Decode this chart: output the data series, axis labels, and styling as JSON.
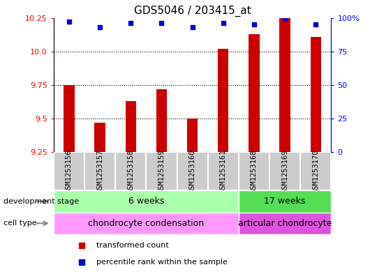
{
  "title": "GDS5046 / 203415_at",
  "samples": [
    "GSM1253156",
    "GSM1253157",
    "GSM1253158",
    "GSM1253159",
    "GSM1253160",
    "GSM1253161",
    "GSM1253168",
    "GSM1253169",
    "GSM1253170"
  ],
  "transformed_counts": [
    9.75,
    9.47,
    9.63,
    9.72,
    9.5,
    10.02,
    10.13,
    10.25,
    10.11
  ],
  "percentile_ranks": [
    97,
    93,
    96,
    96,
    93,
    96,
    95,
    99,
    95
  ],
  "ylim_left": [
    9.25,
    10.25
  ],
  "ylim_right": [
    0,
    100
  ],
  "yticks_left": [
    9.25,
    9.5,
    9.75,
    10.0,
    10.25
  ],
  "yticks_right": [
    0,
    25,
    50,
    75,
    100
  ],
  "ytick_labels_right": [
    "0",
    "25",
    "50",
    "75",
    "100%"
  ],
  "bar_color": "#cc0000",
  "dot_color": "#0000cc",
  "bar_bottom": 9.25,
  "development_stages": [
    {
      "label": "6 weeks",
      "start": 0,
      "end": 6,
      "color": "#aaffaa"
    },
    {
      "label": "17 weeks",
      "start": 6,
      "end": 9,
      "color": "#55dd55"
    }
  ],
  "cell_types": [
    {
      "label": "chondrocyte condensation",
      "start": 0,
      "end": 6,
      "color": "#ff99ff"
    },
    {
      "label": "articular chondrocyte",
      "start": 6,
      "end": 9,
      "color": "#dd55dd"
    }
  ],
  "dev_stage_label": "development stage",
  "cell_type_label": "cell type",
  "legend_bar_label": "transformed count",
  "legend_dot_label": "percentile rank within the sample",
  "sample_box_color": "#cccccc",
  "sample_box_edge_color": "#ffffff",
  "title_fontsize": 11,
  "tick_fontsize": 8,
  "label_fontsize": 8,
  "sample_fontsize": 7.5,
  "annotation_fontsize": 9
}
